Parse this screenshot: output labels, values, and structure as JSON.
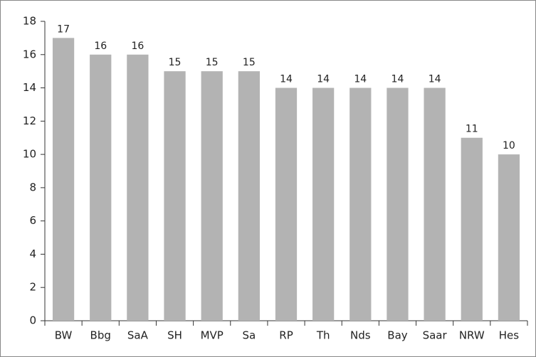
{
  "chart_data": {
    "type": "bar",
    "categories": [
      "BW",
      "Bbg",
      "SaA",
      "SH",
      "MVP",
      "Sa",
      "RP",
      "Th",
      "Nds",
      "Bay",
      "Saar",
      "NRW",
      "Hes"
    ],
    "values": [
      17,
      16,
      16,
      15,
      15,
      15,
      14,
      14,
      14,
      14,
      14,
      11,
      10
    ],
    "color": "#b3b3b3",
    "ylim": [
      0,
      18
    ],
    "yticks": [
      0,
      2,
      4,
      6,
      8,
      10,
      12,
      14,
      16,
      18
    ],
    "grid": false
  }
}
